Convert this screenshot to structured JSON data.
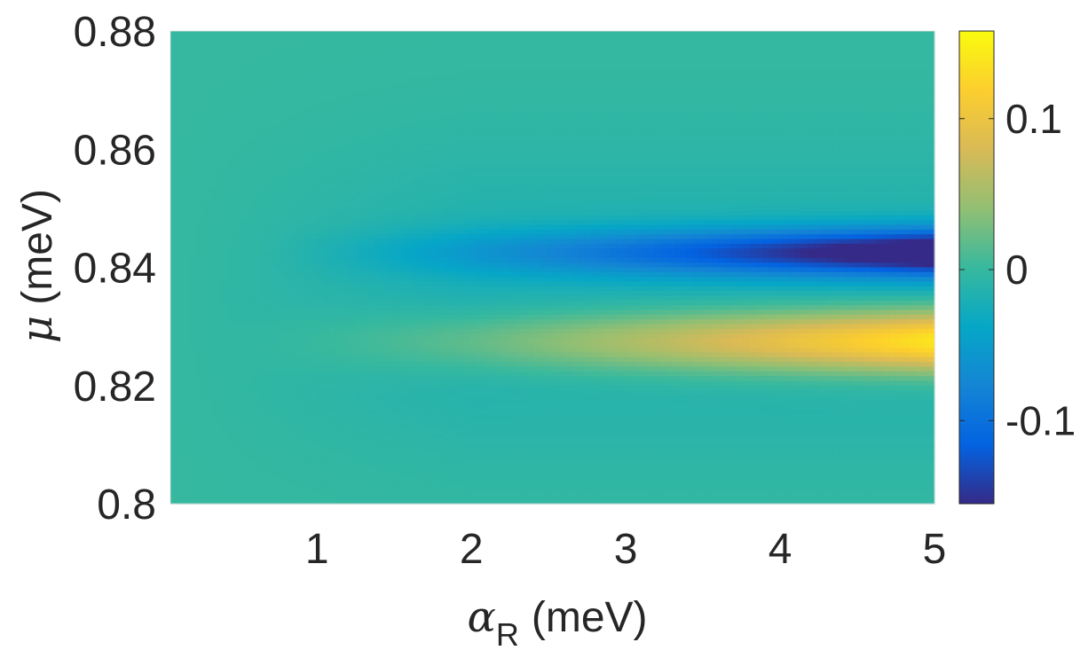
{
  "chart_data": {
    "type": "heatmap",
    "title": "",
    "xlabel": {
      "symbol": "α",
      "subscript": "R",
      "unit": "(meV)"
    },
    "ylabel": {
      "symbol": "μ",
      "unit": "(meV)"
    },
    "xlim": [
      0.05,
      5
    ],
    "ylim": [
      0.8,
      0.88
    ],
    "x_ticks": [
      1,
      2,
      3,
      4,
      5
    ],
    "x_tick_labels": [
      "1",
      "2",
      "3",
      "4",
      "5"
    ],
    "y_ticks": [
      0.8,
      0.82,
      0.84,
      0.86,
      0.88
    ],
    "y_tick_labels": [
      "0.8",
      "0.82",
      "0.84",
      "0.86",
      "0.88"
    ],
    "colorbar": {
      "colormap": "parula",
      "clim": [
        -0.155,
        0.158
      ],
      "ticks": [
        -0.1,
        0,
        0.1
      ],
      "tick_labels": [
        "-0.1",
        "0",
        "0.1"
      ]
    },
    "grid": false,
    "description": "Value grows with alpha_R: positive band (max ~0.158 near alpha_R=5) centered at mu~0.8275 meV, negative band (min ~-0.155 near alpha_R=4.5) centered at mu~0.8425 meV; near zero elsewhere.",
    "features": [
      {
        "label": "positive band",
        "mu_center": 0.8275,
        "mu_width": 0.0052,
        "peak_value": 0.158,
        "alpha_center": 5.0,
        "alpha_onset": 1.0
      },
      {
        "label": "negative band",
        "mu_center": 0.8425,
        "mu_width": 0.004,
        "peak_value": -0.155,
        "alpha_center": 4.5,
        "alpha_onset": 1.6
      }
    ]
  }
}
